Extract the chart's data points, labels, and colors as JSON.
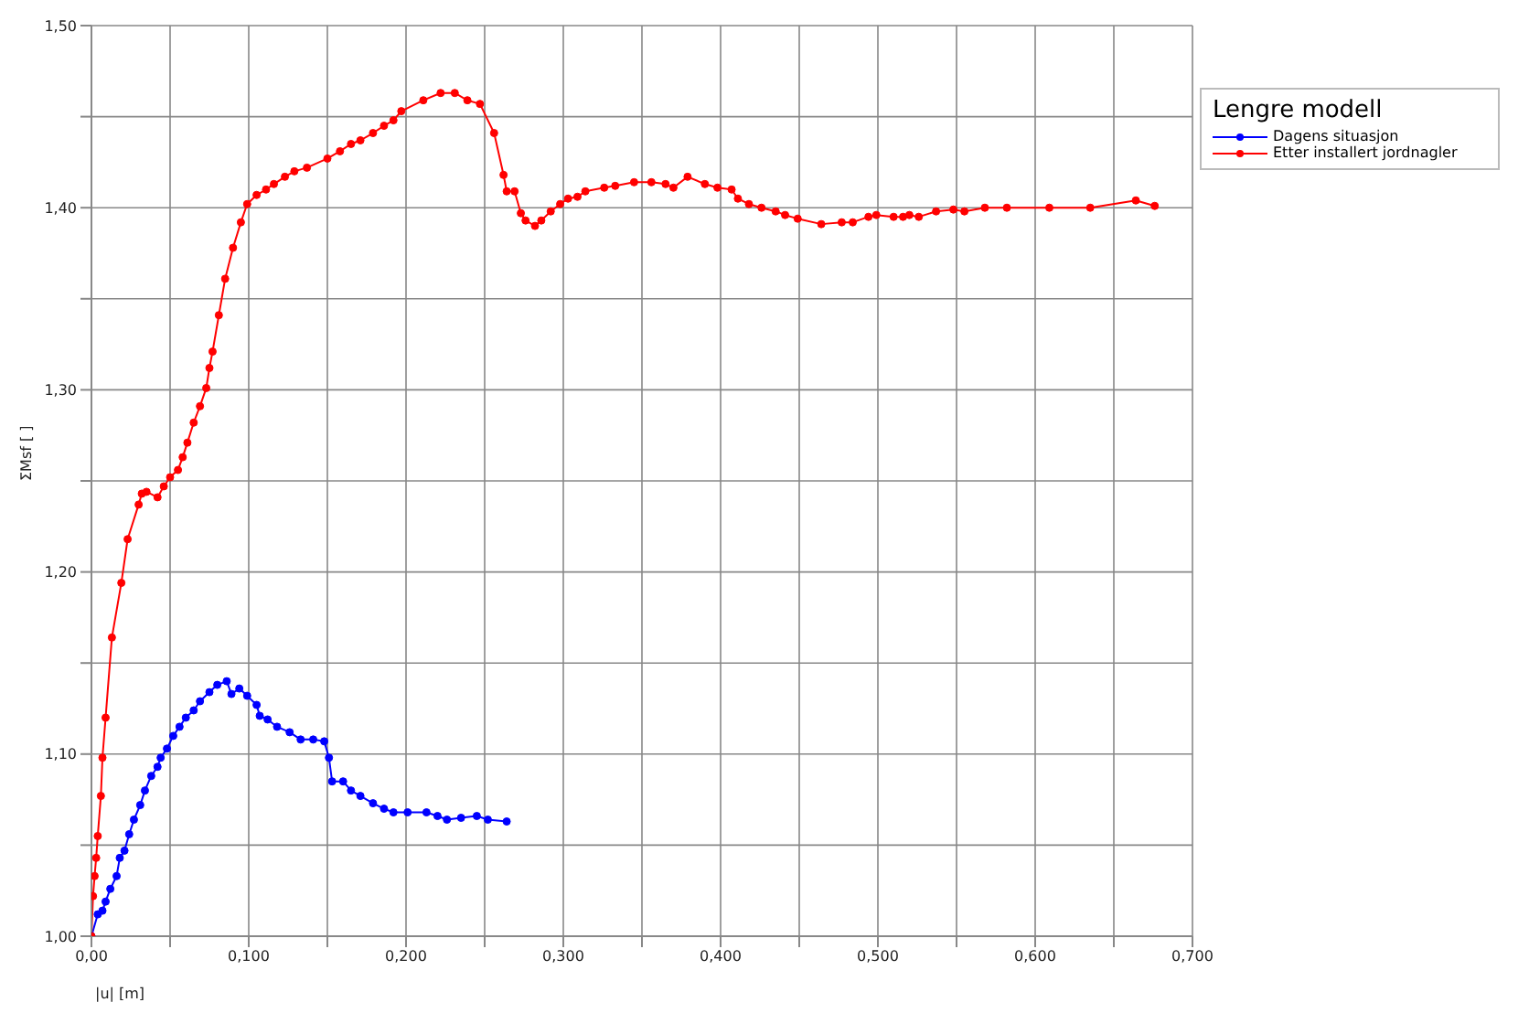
{
  "chart_data": {
    "type": "line",
    "xlabel": "|u| [m]",
    "ylabel": "ΣMsf [ ]",
    "legend_title": "Lengre modell",
    "legend": "right",
    "grid": true,
    "marker": "circle",
    "line_style": "solid",
    "xlim": [
      0,
      0.7
    ],
    "ylim": [
      1.0,
      1.5
    ],
    "xticks": [
      {
        "value": 0,
        "label": "0,00"
      },
      {
        "value": 0.05,
        "label": null
      },
      {
        "value": 0.1,
        "label": "0,100"
      },
      {
        "value": 0.15,
        "label": null
      },
      {
        "value": 0.2,
        "label": "0,200"
      },
      {
        "value": 0.25,
        "label": null
      },
      {
        "value": 0.3,
        "label": "0,300"
      },
      {
        "value": 0.35,
        "label": null
      },
      {
        "value": 0.4,
        "label": "0,400"
      },
      {
        "value": 0.45,
        "label": null
      },
      {
        "value": 0.5,
        "label": "0,500"
      },
      {
        "value": 0.55,
        "label": null
      },
      {
        "value": 0.6,
        "label": "0,600"
      },
      {
        "value": 0.65,
        "label": null
      },
      {
        "value": 0.7,
        "label": "0,700"
      }
    ],
    "yticks": [
      {
        "value": 1.0,
        "label": "1,00"
      },
      {
        "value": 1.05,
        "label": null
      },
      {
        "value": 1.1,
        "label": "1,10"
      },
      {
        "value": 1.15,
        "label": null
      },
      {
        "value": 1.2,
        "label": "1,20"
      },
      {
        "value": 1.25,
        "label": null
      },
      {
        "value": 1.3,
        "label": "1,30"
      },
      {
        "value": 1.35,
        "label": null
      },
      {
        "value": 1.4,
        "label": "1,40"
      },
      {
        "value": 1.45,
        "label": null
      },
      {
        "value": 1.5,
        "label": "1,50"
      }
    ],
    "series": [
      {
        "name": "Dagens situasjon",
        "color": "#0000ff",
        "x": [
          0,
          0.004,
          0.007,
          0.009,
          0.012,
          0.016,
          0.018,
          0.021,
          0.024,
          0.027,
          0.031,
          0.034,
          0.038,
          0.042,
          0.044,
          0.048,
          0.052,
          0.056,
          0.06,
          0.065,
          0.069,
          0.075,
          0.08,
          0.086,
          0.089,
          0.094,
          0.099,
          0.105,
          0.107,
          0.112,
          0.118,
          0.126,
          0.133,
          0.141,
          0.148,
          0.151,
          0.153,
          0.16,
          0.165,
          0.171,
          0.179,
          0.186,
          0.192,
          0.201,
          0.213,
          0.22,
          0.226,
          0.235,
          0.245,
          0.252,
          0.264
        ],
        "values": [
          1.0,
          1.012,
          1.014,
          1.019,
          1.026,
          1.033,
          1.043,
          1.047,
          1.056,
          1.064,
          1.072,
          1.08,
          1.088,
          1.093,
          1.098,
          1.103,
          1.11,
          1.115,
          1.12,
          1.124,
          1.129,
          1.134,
          1.138,
          1.14,
          1.133,
          1.136,
          1.132,
          1.127,
          1.121,
          1.119,
          1.115,
          1.112,
          1.108,
          1.108,
          1.107,
          1.098,
          1.085,
          1.085,
          1.08,
          1.077,
          1.073,
          1.07,
          1.068,
          1.068,
          1.068,
          1.066,
          1.064,
          1.065,
          1.066,
          1.064,
          1.063
        ]
      },
      {
        "name": "Etter installert jordnagler",
        "color": "#ff0000",
        "x": [
          0,
          0.001,
          0.002,
          0.003,
          0.004,
          0.006,
          0.007,
          0.009,
          0.013,
          0.019,
          0.023,
          0.03,
          0.032,
          0.035,
          0.042,
          0.046,
          0.05,
          0.055,
          0.058,
          0.061,
          0.065,
          0.069,
          0.073,
          0.075,
          0.077,
          0.081,
          0.085,
          0.09,
          0.095,
          0.099,
          0.105,
          0.111,
          0.116,
          0.123,
          0.129,
          0.137,
          0.15,
          0.158,
          0.165,
          0.171,
          0.179,
          0.186,
          0.192,
          0.197,
          0.211,
          0.222,
          0.231,
          0.239,
          0.247,
          0.256,
          0.262,
          0.264,
          0.269,
          0.273,
          0.276,
          0.282,
          0.286,
          0.292,
          0.298,
          0.303,
          0.309,
          0.314,
          0.326,
          0.333,
          0.345,
          0.356,
          0.365,
          0.37,
          0.379,
          0.39,
          0.398,
          0.407,
          0.411,
          0.418,
          0.426,
          0.435,
          0.441,
          0.449,
          0.464,
          0.477,
          0.484,
          0.494,
          0.499,
          0.51,
          0.516,
          0.52,
          0.526,
          0.537,
          0.548,
          0.555,
          0.568,
          0.582,
          0.609,
          0.635,
          0.664,
          0.676
        ],
        "values": [
          1.0,
          1.022,
          1.033,
          1.043,
          1.055,
          1.077,
          1.098,
          1.12,
          1.164,
          1.194,
          1.218,
          1.237,
          1.243,
          1.244,
          1.241,
          1.247,
          1.252,
          1.256,
          1.263,
          1.271,
          1.282,
          1.291,
          1.301,
          1.312,
          1.321,
          1.341,
          1.361,
          1.378,
          1.392,
          1.402,
          1.407,
          1.41,
          1.413,
          1.417,
          1.42,
          1.422,
          1.427,
          1.431,
          1.435,
          1.437,
          1.441,
          1.445,
          1.448,
          1.453,
          1.459,
          1.463,
          1.463,
          1.459,
          1.457,
          1.441,
          1.418,
          1.409,
          1.409,
          1.397,
          1.393,
          1.39,
          1.393,
          1.398,
          1.402,
          1.405,
          1.406,
          1.409,
          1.411,
          1.412,
          1.414,
          1.414,
          1.413,
          1.411,
          1.417,
          1.413,
          1.411,
          1.41,
          1.405,
          1.402,
          1.4,
          1.398,
          1.396,
          1.394,
          1.391,
          1.392,
          1.392,
          1.395,
          1.396,
          1.395,
          1.395,
          1.396,
          1.395,
          1.398,
          1.399,
          1.398,
          1.4,
          1.4,
          1.4,
          1.4,
          1.404,
          1.401
        ]
      }
    ]
  }
}
